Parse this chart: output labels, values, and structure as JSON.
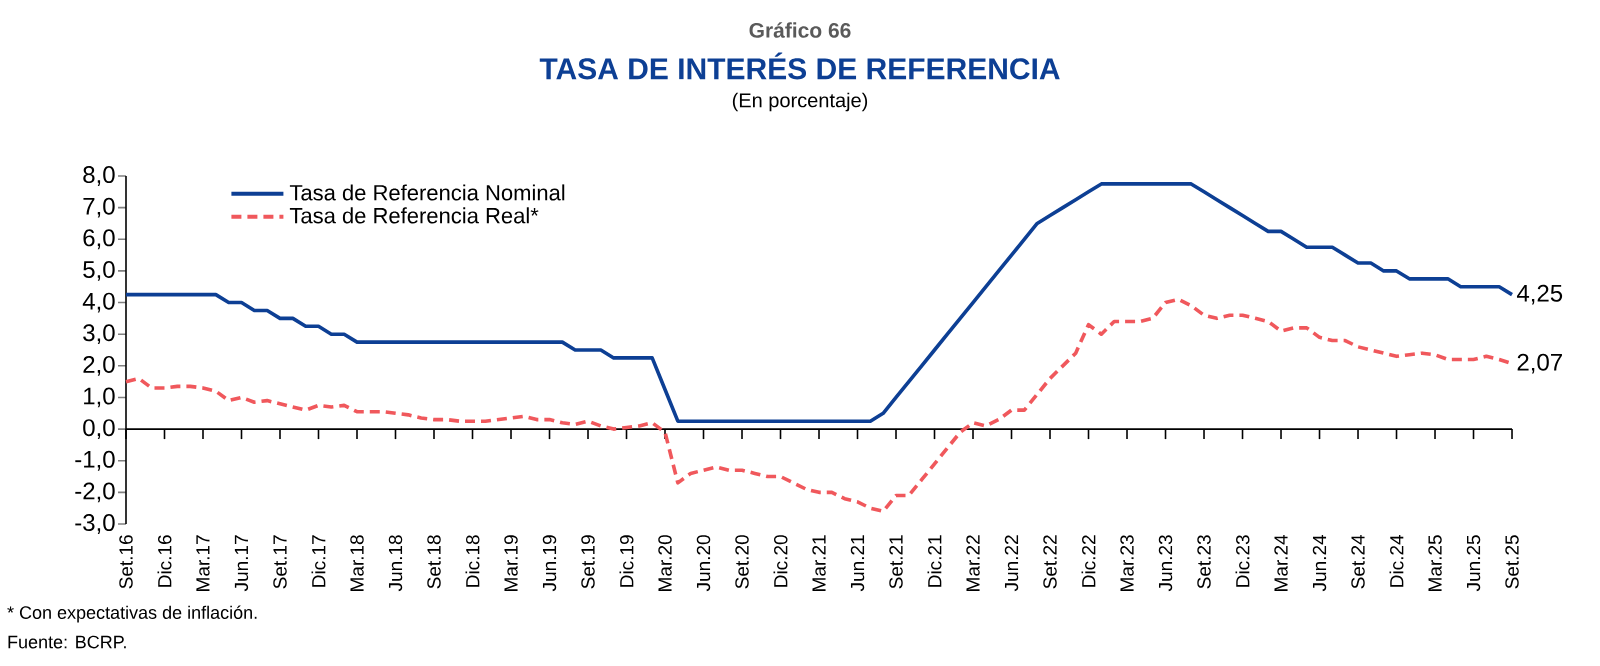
{
  "chart_data": {
    "type": "line",
    "title": "TASA DE INTERÉS DE REFERENCIA",
    "subtitle": "(En porcentaje)",
    "annotations": [
      "Gráfico 66",
      "*  Con expectativas de inflación.",
      "Fuente: BCRP."
    ],
    "categories": [
      "Set.16",
      null,
      null,
      "Dic.16",
      null,
      null,
      "Mar.17",
      null,
      null,
      "Jun.17",
      null,
      null,
      "Set.17",
      null,
      null,
      "Dic.17",
      null,
      null,
      "Mar.18",
      null,
      null,
      "Jun.18",
      null,
      null,
      "Set.18",
      null,
      null,
      "Dic.18",
      null,
      null,
      "Mar.19",
      null,
      null,
      "Jun.19",
      null,
      null,
      "Set.19",
      null,
      null,
      "Dic.19",
      null,
      null,
      "Mar.20",
      null,
      null,
      "Jun.20",
      null,
      null,
      "Set.20",
      null,
      null,
      "Dic.20",
      null,
      null,
      "Mar.21",
      null,
      null,
      "Jun.21",
      null,
      null,
      "Set.21",
      null,
      null,
      "Dic.21",
      null,
      null,
      "Mar.22",
      null,
      null,
      "Jun.22",
      null,
      null,
      "Set.22",
      null,
      null,
      "Dic.22",
      null,
      null,
      "Mar.23",
      null,
      null,
      "Jun.23",
      null,
      null,
      "Set.23",
      null,
      null,
      "Dic.23",
      null,
      null,
      "Mar.24",
      null,
      null,
      "Jun.24",
      null,
      null,
      "Set.24",
      null,
      null,
      "Dic.24",
      null,
      null,
      "Mar.25",
      null,
      null,
      "Jun.25",
      null,
      null,
      "Set.25"
    ],
    "series": [
      {
        "name": "Tasa de Referencia Nominal",
        "color": "#0d3f94",
        "line_style": "solid",
        "values": [
          4.25,
          4.25,
          4.25,
          4.25,
          4.25,
          4.25,
          4.25,
          4.25,
          4.0,
          4.0,
          3.75,
          3.75,
          3.5,
          3.5,
          3.25,
          3.25,
          3.0,
          3.0,
          2.75,
          2.75,
          2.75,
          2.75,
          2.75,
          2.75,
          2.75,
          2.75,
          2.75,
          2.75,
          2.75,
          2.75,
          2.75,
          2.75,
          2.75,
          2.75,
          2.75,
          2.5,
          2.5,
          2.5,
          2.25,
          2.25,
          2.25,
          2.25,
          1.25,
          0.25,
          0.25,
          0.25,
          0.25,
          0.25,
          0.25,
          0.25,
          0.25,
          0.25,
          0.25,
          0.25,
          0.25,
          0.25,
          0.25,
          0.25,
          0.25,
          0.5,
          1.0,
          1.5,
          2.0,
          2.5,
          3.0,
          3.5,
          4.0,
          4.5,
          5.0,
          5.5,
          6.0,
          6.5,
          6.75,
          7.0,
          7.25,
          7.5,
          7.75,
          7.75,
          7.75,
          7.75,
          7.75,
          7.75,
          7.75,
          7.75,
          7.5,
          7.25,
          7.0,
          6.75,
          6.5,
          6.25,
          6.25,
          6.0,
          5.75,
          5.75,
          5.75,
          5.5,
          5.25,
          5.25,
          5.0,
          5.0,
          4.75,
          4.75,
          4.75,
          4.75,
          4.5,
          4.5,
          4.5,
          4.5,
          4.25
        ],
        "value_labels": [
          null,
          null,
          null,
          null,
          null,
          null,
          null,
          null,
          null,
          null,
          null,
          null,
          null,
          null,
          null,
          null,
          null,
          null,
          null,
          null,
          null,
          null,
          null,
          null,
          null,
          null,
          null,
          null,
          null,
          null,
          null,
          null,
          null,
          null,
          null,
          null,
          null,
          null,
          null,
          null,
          null,
          null,
          null,
          null,
          null,
          null,
          null,
          null,
          null,
          null,
          null,
          null,
          null,
          null,
          null,
          null,
          null,
          null,
          null,
          null,
          null,
          null,
          null,
          null,
          null,
          null,
          null,
          null,
          null,
          null,
          null,
          null,
          null,
          null,
          null,
          null,
          null,
          null,
          null,
          null,
          null,
          null,
          null,
          null,
          null,
          null,
          null,
          null,
          null,
          null,
          null,
          null,
          null,
          null,
          null,
          null,
          null,
          null,
          null,
          null,
          null,
          null,
          null,
          null,
          null,
          null,
          null,
          null,
          "4,25"
        ]
      },
      {
        "name": "Tasa de Referencia Real*",
        "color": "#f0585c",
        "line_style": "dashed",
        "values": [
          1.5,
          1.6,
          1.3,
          1.3,
          1.35,
          1.35,
          1.3,
          1.2,
          0.9,
          1.0,
          0.85,
          0.9,
          0.8,
          0.7,
          0.6,
          0.75,
          0.7,
          0.75,
          0.55,
          0.55,
          0.55,
          0.5,
          0.45,
          0.35,
          0.3,
          0.3,
          0.25,
          0.25,
          0.25,
          0.3,
          0.35,
          0.4,
          0.3,
          0.3,
          0.2,
          0.15,
          0.25,
          0.1,
          0.0,
          0.05,
          0.1,
          0.2,
          -0.1,
          -1.7,
          -1.4,
          -1.3,
          -1.2,
          -1.3,
          -1.3,
          -1.4,
          -1.5,
          -1.5,
          -1.7,
          -1.9,
          -2.0,
          -2.0,
          -2.2,
          -2.3,
          -2.5,
          -2.6,
          -2.1,
          -2.1,
          -1.6,
          -1.1,
          -0.6,
          -0.1,
          0.2,
          0.1,
          0.3,
          0.6,
          0.6,
          1.1,
          1.6,
          2.0,
          2.4,
          3.3,
          3.0,
          3.4,
          3.4,
          3.4,
          3.5,
          4.0,
          4.1,
          3.9,
          3.6,
          3.5,
          3.6,
          3.6,
          3.5,
          3.4,
          3.1,
          3.2,
          3.2,
          2.9,
          2.8,
          2.8,
          2.6,
          2.5,
          2.4,
          2.3,
          2.35,
          2.4,
          2.35,
          2.2,
          2.2,
          2.2,
          2.3,
          2.2,
          2.07
        ],
        "value_labels": [
          null,
          null,
          null,
          null,
          null,
          null,
          null,
          null,
          null,
          null,
          null,
          null,
          null,
          null,
          null,
          null,
          null,
          null,
          null,
          null,
          null,
          null,
          null,
          null,
          null,
          null,
          null,
          null,
          null,
          null,
          null,
          null,
          null,
          null,
          null,
          null,
          null,
          null,
          null,
          null,
          null,
          null,
          null,
          null,
          null,
          null,
          null,
          null,
          null,
          null,
          null,
          null,
          null,
          null,
          null,
          null,
          null,
          null,
          null,
          null,
          null,
          null,
          null,
          null,
          null,
          null,
          null,
          null,
          null,
          null,
          null,
          null,
          null,
          null,
          null,
          null,
          null,
          null,
          null,
          null,
          null,
          null,
          null,
          null,
          null,
          null,
          null,
          null,
          null,
          null,
          null,
          null,
          null,
          null,
          null,
          null,
          null,
          null,
          null,
          null,
          null,
          null,
          null,
          null,
          null,
          null,
          null,
          null,
          "2,07"
        ]
      }
    ],
    "ylim": [
      -3,
      8
    ],
    "yticks": [
      {
        "value": -3,
        "label": "-3,0"
      },
      {
        "value": -2,
        "label": "-2,0"
      },
      {
        "value": -1,
        "label": "-1,0"
      },
      {
        "value": 0,
        "label": "0,0"
      },
      {
        "value": 1,
        "label": "1,0"
      },
      {
        "value": 2,
        "label": "2,0"
      },
      {
        "value": 3,
        "label": "3,0"
      },
      {
        "value": 4,
        "label": "4,0"
      },
      {
        "value": 5,
        "label": "5,0"
      },
      {
        "value": 6,
        "label": "6,0"
      },
      {
        "value": 7,
        "label": "7,0"
      },
      {
        "value": 8,
        "label": "8,0"
      }
    ],
    "legend": "top left",
    "marker": "none"
  }
}
